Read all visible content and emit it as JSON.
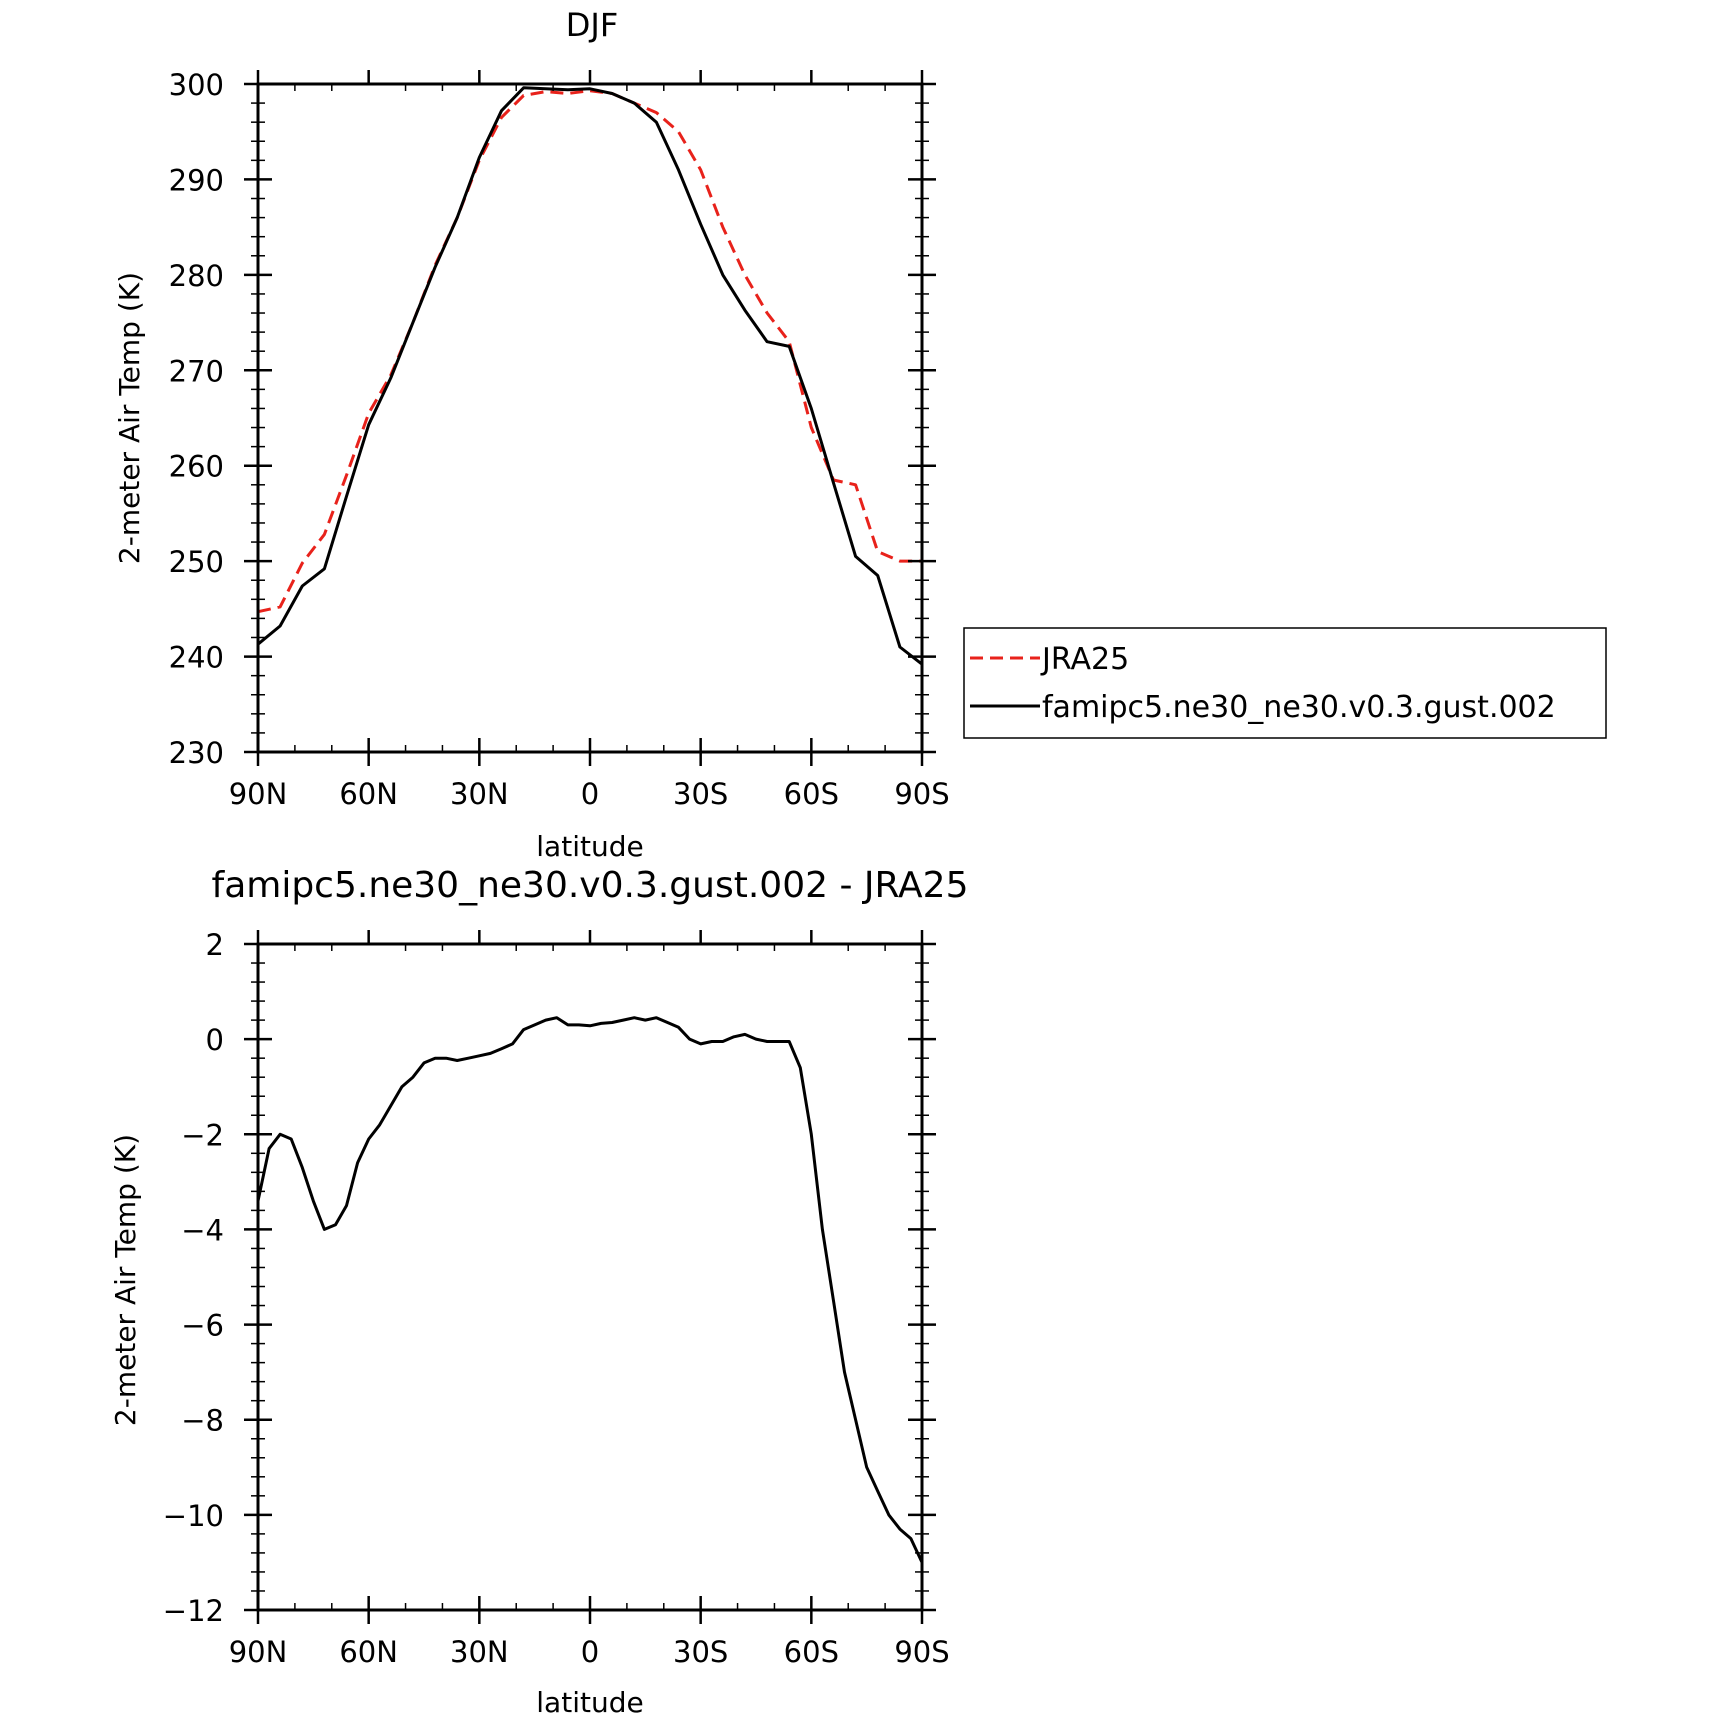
{
  "chart_data": [
    {
      "type": "line",
      "title": "DJF",
      "xlabel": "latitude",
      "ylabel": "2-meter Air Temp (K)",
      "xlim": [
        90,
        -90
      ],
      "ylim": [
        230,
        300
      ],
      "xticks": [
        90,
        60,
        30,
        0,
        -30,
        -60,
        -90
      ],
      "xtick_labels": [
        "90N",
        "60N",
        "30N",
        "0",
        "30S",
        "60S",
        "90S"
      ],
      "yticks": [
        230,
        240,
        250,
        260,
        270,
        280,
        290,
        300
      ],
      "ytick_labels": [
        "230",
        "240",
        "250",
        "260",
        "270",
        "280",
        "290",
        "300"
      ],
      "legend": {
        "position": "right",
        "entries": [
          "JRA25",
          "famipc5.ne30_ne30.v0.3.gust.002"
        ]
      },
      "series": [
        {
          "name": "JRA25",
          "color": "#e8221b",
          "dash": "dashed",
          "x": [
            90,
            84,
            78,
            72,
            66,
            60,
            54,
            48,
            42,
            36,
            30,
            24,
            18,
            12,
            6,
            0,
            -6,
            -12,
            -18,
            -24,
            -30,
            -36,
            -42,
            -48,
            -54,
            -60,
            -66,
            -72,
            -78,
            -84,
            -90
          ],
          "y": [
            244.7,
            245.2,
            249.8,
            252.8,
            259.0,
            265.5,
            269.5,
            275.0,
            281.0,
            286.0,
            292.0,
            296.5,
            298.8,
            299.2,
            299.0,
            299.3,
            299.0,
            298.0,
            297.0,
            295.0,
            291.0,
            285.0,
            280.0,
            276.0,
            273.0,
            264.0,
            258.5,
            258.0,
            251.0,
            250.0,
            250.0
          ]
        },
        {
          "name": "famipc5.ne30_ne30.v0.3.gust.002",
          "color": "#000000",
          "dash": "solid",
          "x": [
            90,
            84,
            78,
            72,
            66,
            60,
            54,
            48,
            42,
            36,
            30,
            24,
            18,
            12,
            6,
            0,
            -6,
            -12,
            -18,
            -24,
            -30,
            -36,
            -42,
            -48,
            -54,
            -60,
            -66,
            -72,
            -78,
            -84,
            -90
          ],
          "y": [
            241.3,
            243.2,
            247.4,
            249.2,
            256.8,
            264.3,
            269.2,
            275.0,
            280.8,
            286.0,
            292.3,
            297.2,
            299.6,
            299.5,
            299.4,
            299.5,
            299.0,
            298.0,
            296.0,
            291.0,
            285.3,
            280.0,
            276.3,
            273.0,
            272.5,
            266.0,
            258.2,
            250.5,
            248.5,
            241.0,
            239.2
          ]
        }
      ]
    },
    {
      "type": "line",
      "title": "famipc5.ne30_ne30.v0.3.gust.002 - JRA25",
      "xlabel": "latitude",
      "ylabel": "2-meter Air Temp (K)",
      "xlim": [
        90,
        -90
      ],
      "ylim": [
        -12,
        2
      ],
      "xticks": [
        90,
        60,
        30,
        0,
        -30,
        -60,
        -90
      ],
      "xtick_labels": [
        "90N",
        "60N",
        "30N",
        "0",
        "30S",
        "60S",
        "90S"
      ],
      "yticks": [
        -12,
        -10,
        -8,
        -6,
        -4,
        -2,
        0,
        2
      ],
      "ytick_labels": [
        "−12",
        "−10",
        "−8",
        "−6",
        "−4",
        "−2",
        "0",
        "2"
      ],
      "series": [
        {
          "color": "#000000",
          "dash": "solid",
          "x": [
            90,
            87,
            84,
            81,
            78,
            75,
            72,
            69,
            66,
            63,
            60,
            57,
            54,
            51,
            48,
            45,
            42,
            39,
            36,
            33,
            30,
            27,
            24,
            21,
            18,
            15,
            12,
            9,
            6,
            3,
            0,
            -3,
            -6,
            -9,
            -12,
            -15,
            -18,
            -21,
            -24,
            -27,
            -30,
            -33,
            -36,
            -39,
            -42,
            -45,
            -48,
            -51,
            -54,
            -57,
            -60,
            -63,
            -66,
            -69,
            -72,
            -75,
            -78,
            -81,
            -84,
            -87,
            -90
          ],
          "y": [
            -3.4,
            -2.3,
            -2.0,
            -2.1,
            -2.7,
            -3.4,
            -4.0,
            -3.9,
            -3.5,
            -2.6,
            -2.1,
            -1.8,
            -1.4,
            -1.0,
            -0.8,
            -0.5,
            -0.4,
            -0.4,
            -0.45,
            -0.4,
            -0.35,
            -0.3,
            -0.2,
            -0.1,
            0.2,
            0.3,
            0.4,
            0.45,
            0.3,
            0.3,
            0.28,
            0.33,
            0.35,
            0.4,
            0.45,
            0.4,
            0.45,
            0.35,
            0.25,
            0.0,
            -0.1,
            -0.05,
            -0.05,
            0.05,
            0.1,
            0.0,
            -0.05,
            -0.05,
            -0.05,
            -0.6,
            -2.0,
            -4.0,
            -5.5,
            -7.0,
            -8.0,
            -9.0,
            -9.5,
            -10.0,
            -10.3,
            -10.5,
            -11.0
          ]
        }
      ]
    }
  ]
}
